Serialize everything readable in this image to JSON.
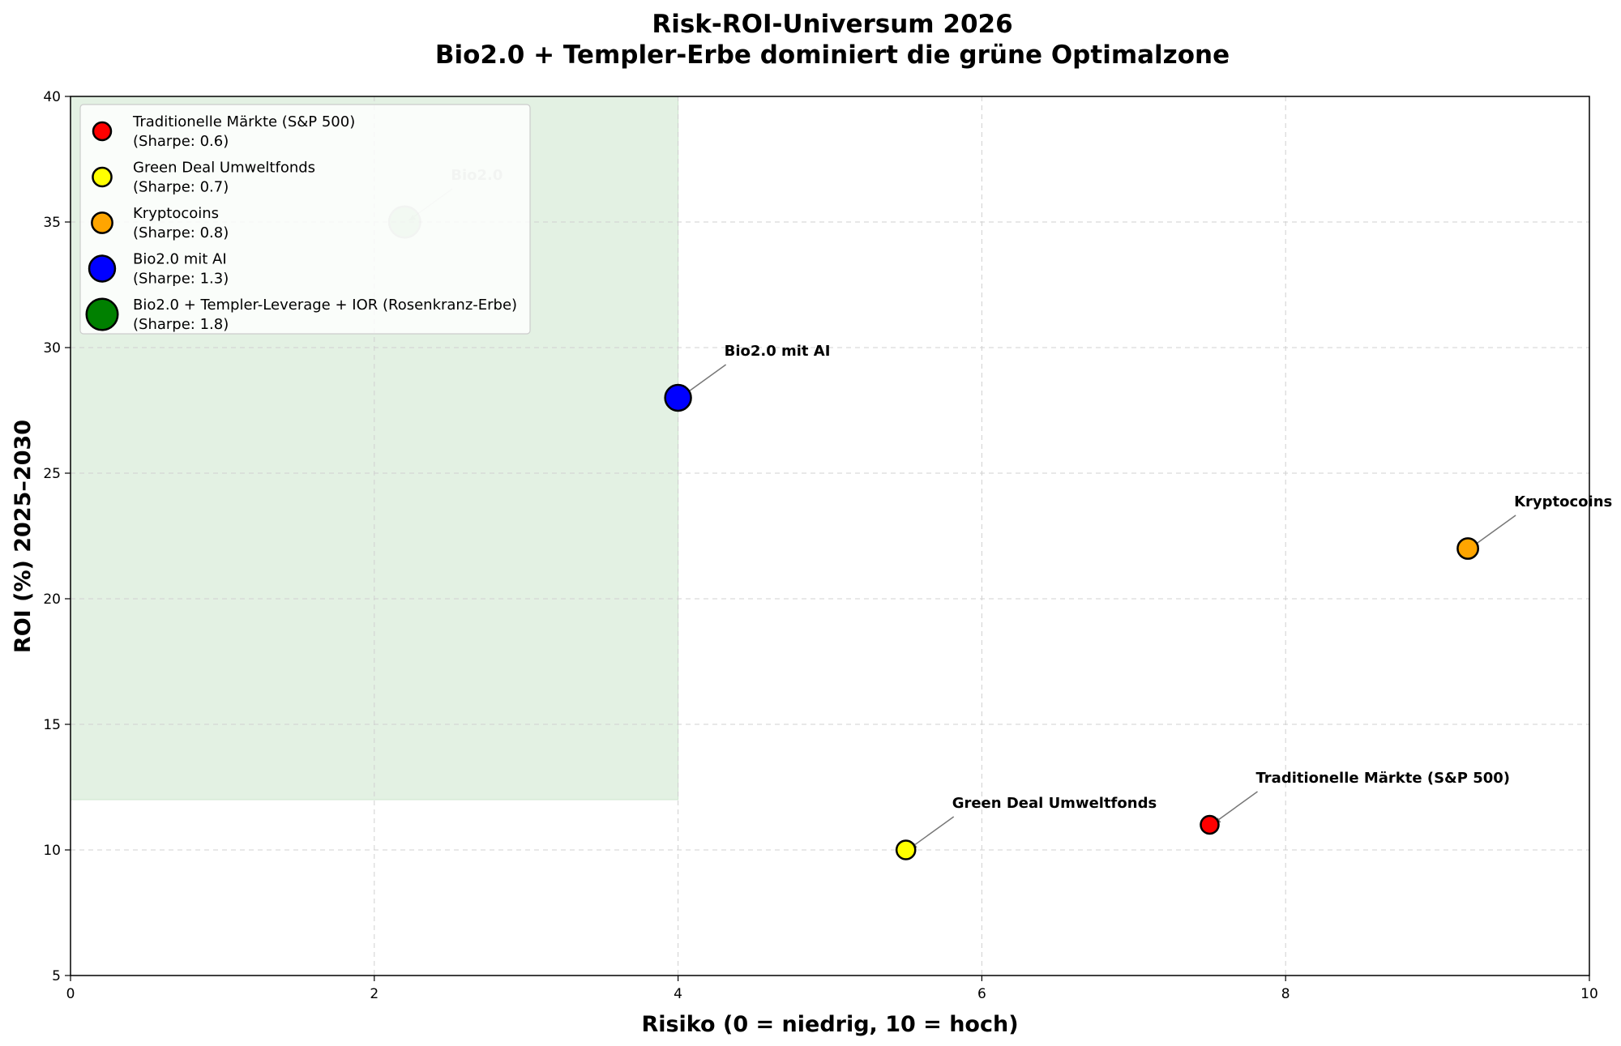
{
  "chart_data": {
    "type": "scatter",
    "title": "Risk-ROI-Universum 2026",
    "subtitle": "Bio2.0 + Templer-Erbe dominiert die grüne Optimalzone",
    "xlabel": "Risiko (0 = niedrig, 10 = hoch)",
    "ylabel": "ROI (%) 2025–2030",
    "xlim": [
      0,
      10
    ],
    "ylim": [
      5,
      40
    ],
    "xticks": [
      0,
      2,
      4,
      6,
      8,
      10
    ],
    "yticks": [
      5,
      10,
      15,
      20,
      25,
      30,
      35,
      40
    ],
    "grid": true,
    "legend_position": "upper-left",
    "optimal_zone": {
      "x": [
        0,
        4
      ],
      "y": [
        12,
        40
      ],
      "color": "#e3f1e3"
    },
    "series": [
      {
        "name": "Traditionelle Märkte (S&P 500)",
        "sharpe_label": "(Sharpe: 0.6)",
        "x": 7.5,
        "y": 11,
        "color": "#ff0000",
        "size": 1,
        "annotation": "Traditionelle Märkte (S&P 500)"
      },
      {
        "name": "Green Deal Umweltfonds",
        "sharpe_label": "(Sharpe: 0.7)",
        "x": 5.5,
        "y": 10,
        "color": "#ffff00",
        "size": 1.05,
        "annotation": "Green Deal Umweltfonds"
      },
      {
        "name": "Kryptocoins",
        "sharpe_label": "(Sharpe: 0.8)",
        "x": 9.2,
        "y": 22,
        "color": "#ffa500",
        "size": 1.15,
        "annotation": "Kryptocoins"
      },
      {
        "name": "Bio2.0 mit AI",
        "sharpe_label": "(Sharpe: 1.3)",
        "x": 4.0,
        "y": 28,
        "color": "#0000ff",
        "size": 1.45,
        "annotation": "Bio2.0 mit AI"
      },
      {
        "name": "Bio2.0 + Templer-Leverage + IOR (Rosenkranz-Erbe)",
        "sharpe_label": "(Sharpe: 1.8)",
        "x": 2.2,
        "y": 35,
        "color": "#008000",
        "size": 1.75,
        "annotation": "Bio2.0"
      }
    ]
  }
}
